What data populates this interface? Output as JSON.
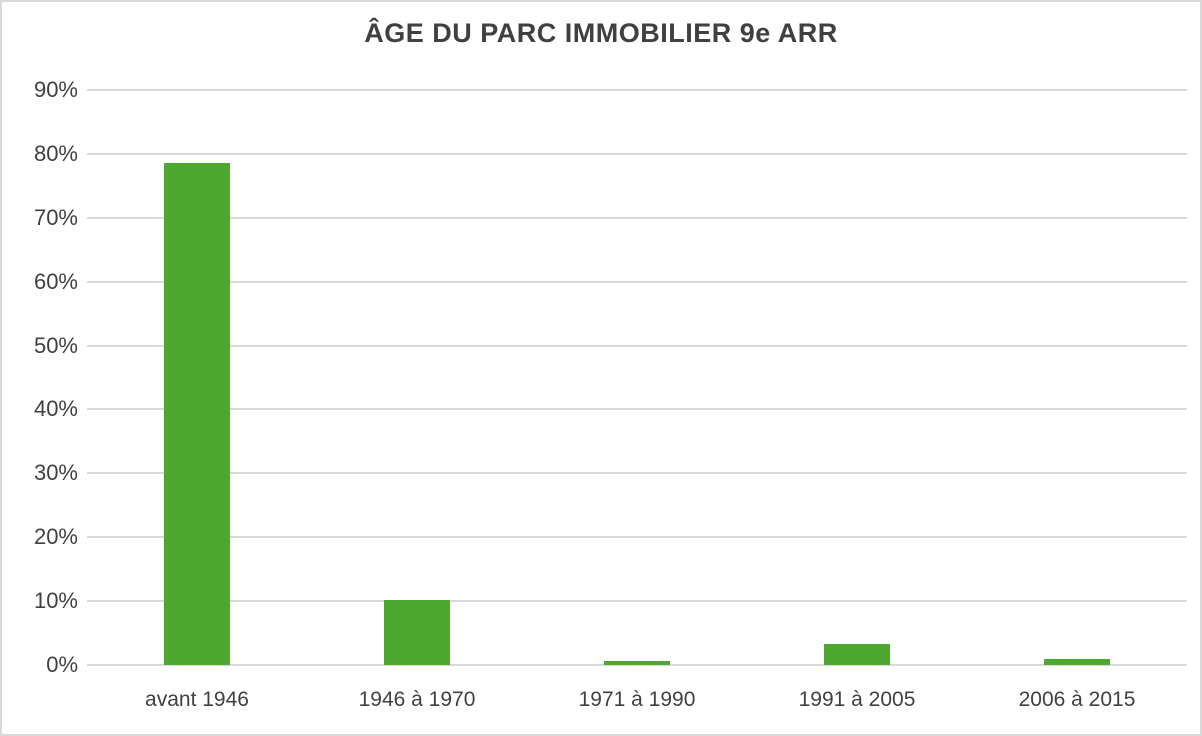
{
  "chart_data": {
    "type": "bar",
    "title": "ÂGE DU PARC IMMOBILIER 9e ARR",
    "categories": [
      "avant 1946",
      "1946 à 1970",
      "1971 à 1990",
      "1991 à 2005",
      "2006 à 2015"
    ],
    "values": [
      78.5,
      10.2,
      0.6,
      3.3,
      0.9
    ],
    "xlabel": "",
    "ylabel": "",
    "ylim": [
      0,
      90
    ],
    "ytick_step": 10,
    "ytick_labels": [
      "0%",
      "10%",
      "20%",
      "30%",
      "40%",
      "50%",
      "60%",
      "70%",
      "80%",
      "90%"
    ],
    "legend": "none",
    "grid": true,
    "colors": {
      "bar": "#4ea72e",
      "gridline": "#d9d9d9",
      "axis_line": "#d9d9d9",
      "text": "#404040",
      "frame_border": "#d9d9d9",
      "background": "#ffffff"
    }
  }
}
